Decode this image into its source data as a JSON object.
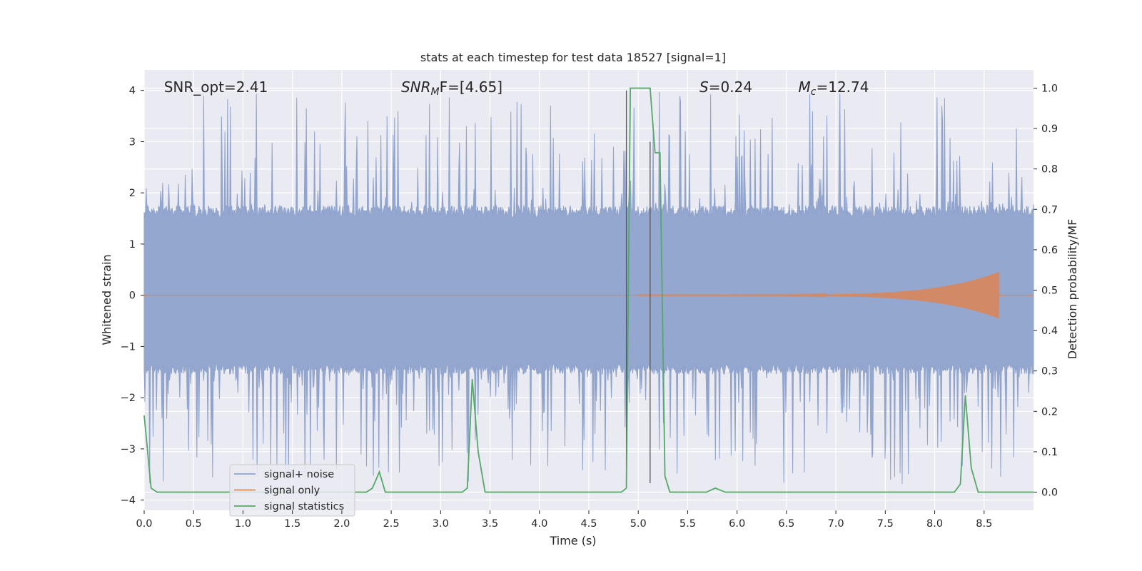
{
  "chart_data": {
    "type": "line",
    "title": "stats at each timestep for test data 18527 [signal=1]",
    "xlabel": "Time (s)",
    "ylabel_left": "Whitened strain",
    "ylabel_right": "Detection probability/MF",
    "xlim": [
      0.0,
      9.0
    ],
    "ylim_left": [
      -4.2,
      4.4
    ],
    "ylim_right": [
      -0.045,
      1.045
    ],
    "x_ticks": [
      "0.0",
      "0.5",
      "1.0",
      "1.5",
      "2.0",
      "2.5",
      "3.0",
      "3.5",
      "4.0",
      "4.5",
      "5.0",
      "5.5",
      "6.0",
      "6.5",
      "7.0",
      "7.5",
      "8.0",
      "8.5"
    ],
    "x_tick_values": [
      0.0,
      0.5,
      1.0,
      1.5,
      2.0,
      2.5,
      3.0,
      3.5,
      4.0,
      4.5,
      5.0,
      5.5,
      6.0,
      6.5,
      7.0,
      7.5,
      8.0,
      8.5
    ],
    "y_left_ticks": [
      "4",
      "3",
      "2",
      "1",
      "0",
      "−1",
      "−2",
      "−3",
      "−4"
    ],
    "y_left_tick_values": [
      4,
      3,
      2,
      1,
      0,
      -1,
      -2,
      -3,
      -4
    ],
    "y_right_ticks": [
      "1.0",
      "0.9",
      "0.8",
      "0.7",
      "0.6",
      "0.5",
      "0.4",
      "0.3",
      "0.2",
      "0.1",
      "0.0"
    ],
    "y_right_tick_values": [
      1.0,
      0.9,
      0.8,
      0.7,
      0.6,
      0.5,
      0.4,
      0.3,
      0.2,
      0.1,
      0.0
    ],
    "grid": true,
    "legend_position": "lower-left",
    "annotations": [
      {
        "text": "SNR_opt=2.41",
        "x": 0.2,
        "y": 4.05
      },
      {
        "text": "SNR",
        "sub": "M",
        "text2": "F=[4.65]",
        "italic": true,
        "x": 2.6,
        "y": 4.05
      },
      {
        "text": "S",
        "text2": "=0.24",
        "italic": true,
        "x": 5.62,
        "y": 4.05
      },
      {
        "text": "M",
        "sub": "c",
        "text2": "=12.74",
        "italic": true,
        "x": 6.62,
        "y": 4.05
      }
    ],
    "vlines": [
      {
        "x": 4.88,
        "y_from": -3.67,
        "y_to": 4.0
      },
      {
        "x": 5.12,
        "y_from": -3.67,
        "y_to": 3.0
      }
    ],
    "series": [
      {
        "name": "signal+ noise",
        "color": "#8fa3cc",
        "axis": "left",
        "description_range": {
          "x": [
            0.0,
            9.0
          ],
          "band_lo": -1.4,
          "band_hi": 1.6,
          "peak_max": 4.0,
          "peak_min": -3.7
        }
      },
      {
        "name": "signal only",
        "color": "#dd8452",
        "axis": "left",
        "chirp": {
          "x_start": 5.0,
          "x_end": 8.65,
          "amp_end": 0.45
        }
      },
      {
        "name": "signal statistics",
        "color": "#55a868",
        "axis": "right",
        "x": [
          0.0,
          0.07,
          0.13,
          2.25,
          2.31,
          2.38,
          2.44,
          3.22,
          3.27,
          3.32,
          3.38,
          3.45,
          4.83,
          4.88,
          4.92,
          5.12,
          5.17,
          5.22,
          5.27,
          5.32,
          5.55,
          5.69,
          5.78,
          5.88,
          6.5,
          8.2,
          8.26,
          8.31,
          8.37,
          8.44,
          9.0
        ],
        "y": [
          0.19,
          0.01,
          0.0,
          0.0,
          0.01,
          0.05,
          0.0,
          0.0,
          0.01,
          0.28,
          0.1,
          0.0,
          0.0,
          0.01,
          1.0,
          1.0,
          0.84,
          0.84,
          0.04,
          0.0,
          0.0,
          0.0,
          0.01,
          0.0,
          0.0,
          0.0,
          0.02,
          0.24,
          0.06,
          0.0,
          0.0
        ]
      }
    ]
  }
}
